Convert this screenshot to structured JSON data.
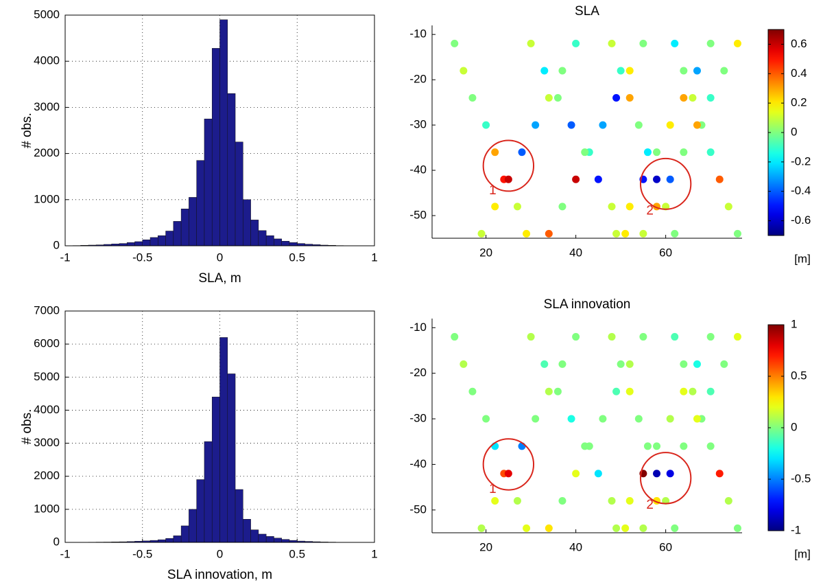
{
  "chart_data": [
    {
      "type": "histogram",
      "xlabel": "SLA, m",
      "ylabel": "# obs.",
      "color": "#1c1c8c",
      "grid": true,
      "bins": [
        -1,
        -0.95,
        -0.9,
        -0.85,
        -0.8,
        -0.75,
        -0.7,
        -0.65,
        -0.6,
        -0.55,
        -0.5,
        -0.45,
        -0.4,
        -0.35,
        -0.3,
        -0.25,
        -0.2,
        -0.15,
        -0.1,
        -0.05,
        0,
        0.05,
        0.1,
        0.15,
        0.2,
        0.25,
        0.3,
        0.35,
        0.4,
        0.45,
        0.5,
        0.55,
        0.6,
        0.65,
        0.7,
        0.75,
        0.8,
        0.85,
        0.9,
        0.95,
        1
      ],
      "values": [
        0,
        5,
        10,
        15,
        20,
        30,
        40,
        50,
        70,
        90,
        130,
        180,
        220,
        320,
        530,
        800,
        1050,
        1850,
        2750,
        4280,
        4900,
        3300,
        2250,
        1000,
        560,
        330,
        220,
        150,
        100,
        70,
        50,
        35,
        25,
        15,
        10,
        5,
        3,
        2,
        1,
        0
      ],
      "xlim": [
        -1,
        1
      ],
      "xticks": [
        -1,
        -0.5,
        0,
        0.5,
        1
      ],
      "ylim": [
        0,
        5000
      ],
      "yticks": [
        0,
        1000,
        2000,
        3000,
        4000,
        5000
      ]
    },
    {
      "type": "scatter",
      "title": "SLA",
      "colorbar_label": "[m]",
      "colormap": "jet",
      "x": [
        13,
        15,
        17,
        20,
        22,
        24,
        27,
        29,
        40,
        37,
        34,
        31,
        28,
        25,
        22,
        19,
        48,
        50,
        52,
        54,
        56,
        58,
        60,
        62,
        70,
        67,
        64,
        61,
        58,
        55,
        52,
        49,
        55,
        52,
        49,
        46,
        43,
        40,
        37,
        34,
        62,
        64,
        66,
        68,
        70,
        72,
        74,
        76,
        30,
        33,
        36,
        39,
        42,
        45,
        48,
        51,
        76,
        73,
        70,
        67,
        64,
        61,
        58,
        55
      ],
      "y": [
        -12,
        -18,
        -24,
        -30,
        -36,
        -42,
        -48,
        -54,
        -12,
        -18,
        -24,
        -30,
        -36,
        -42,
        -48,
        -54,
        -12,
        -18,
        -24,
        -30,
        -36,
        -42,
        -48,
        -54,
        -12,
        -18,
        -24,
        -30,
        -36,
        -42,
        -48,
        -54,
        -12,
        -18,
        -24,
        -30,
        -36,
        -42,
        -48,
        -54,
        -12,
        -18,
        -24,
        -30,
        -36,
        -42,
        -48,
        -54,
        -12,
        -18,
        -24,
        -30,
        -36,
        -42,
        -48,
        -54,
        -12,
        -18,
        -24,
        -30,
        -36,
        -42,
        -48,
        -54
      ],
      "values": [
        0,
        0.1,
        0,
        -0.1,
        0.3,
        0.5,
        0.1,
        0.2,
        -0.1,
        0,
        0.1,
        -0.3,
        -0.4,
        0.6,
        0.2,
        0.1,
        0.1,
        -0.1,
        0.3,
        0,
        -0.2,
        -0.6,
        0.1,
        0,
        0,
        -0.3,
        0.3,
        0.2,
        0,
        -0.5,
        0.2,
        0.1,
        0,
        0.2,
        -0.5,
        -0.3,
        -0.1,
        0.6,
        0,
        0.4,
        -0.2,
        0,
        0.1,
        0,
        -0.1,
        0.4,
        0.1,
        0,
        0.1,
        -0.2,
        0,
        -0.4,
        0,
        -0.5,
        0.1,
        0.2,
        0.2,
        0,
        -0.1,
        0.3,
        0,
        -0.4,
        0.3,
        0.1
      ],
      "xlim": [
        8,
        77
      ],
      "xticks": [
        20,
        40,
        60
      ],
      "ylim": [
        -55,
        -8
      ],
      "yticks": [
        -50,
        -40,
        -30,
        -20,
        -10
      ],
      "clim": [
        -0.7,
        0.7
      ],
      "cticks": [
        -0.6,
        -0.4,
        -0.2,
        0,
        0.2,
        0.4,
        0.6
      ],
      "circles": [
        {
          "x": 25,
          "y": -39,
          "r": 5.6
        },
        {
          "x": 60,
          "y": -43,
          "r": 5.6
        }
      ],
      "annotations": [
        {
          "text": "1",
          "x": 21.5,
          "y": -44.5
        },
        {
          "text": "2",
          "x": 56.5,
          "y": -49
        }
      ]
    },
    {
      "type": "histogram",
      "xlabel": "SLA innovation, m",
      "ylabel": "# obs.",
      "color": "#1c1c8c",
      "grid": true,
      "bins": [
        -1,
        -0.95,
        -0.9,
        -0.85,
        -0.8,
        -0.75,
        -0.7,
        -0.65,
        -0.6,
        -0.55,
        -0.5,
        -0.45,
        -0.4,
        -0.35,
        -0.3,
        -0.25,
        -0.2,
        -0.15,
        -0.1,
        -0.05,
        0,
        0.05,
        0.1,
        0.15,
        0.2,
        0.25,
        0.3,
        0.35,
        0.4,
        0.45,
        0.5,
        0.55,
        0.6,
        0.65,
        0.7,
        0.75,
        0.8,
        0.85,
        0.9,
        0.95,
        1
      ],
      "values": [
        0,
        2,
        4,
        6,
        8,
        10,
        14,
        18,
        25,
        35,
        45,
        60,
        80,
        120,
        200,
        500,
        1000,
        1900,
        3050,
        4400,
        6200,
        5100,
        1600,
        700,
        380,
        250,
        180,
        130,
        90,
        60,
        40,
        30,
        20,
        12,
        8,
        5,
        3,
        2,
        1,
        0
      ],
      "xlim": [
        -1,
        1
      ],
      "xticks": [
        -1,
        -0.5,
        0,
        0.5,
        1
      ],
      "ylim": [
        0,
        7000
      ],
      "yticks": [
        0,
        1000,
        2000,
        3000,
        4000,
        5000,
        6000,
        7000
      ]
    },
    {
      "type": "scatter",
      "title": "SLA innovation",
      "colorbar_label": "[m]",
      "colormap": "jet",
      "x": [
        13,
        15,
        17,
        20,
        22,
        24,
        27,
        29,
        40,
        37,
        34,
        31,
        28,
        25,
        22,
        19,
        48,
        50,
        52,
        54,
        56,
        58,
        60,
        62,
        70,
        67,
        64,
        61,
        58,
        55,
        52,
        49,
        55,
        52,
        49,
        46,
        43,
        40,
        37,
        34,
        62,
        64,
        66,
        68,
        70,
        72,
        74,
        76,
        30,
        33,
        36,
        39,
        42,
        45,
        48,
        51,
        76,
        73,
        70,
        67,
        64,
        61,
        58,
        55
      ],
      "y": [
        -12,
        -18,
        -24,
        -30,
        -36,
        -42,
        -48,
        -54,
        -12,
        -18,
        -24,
        -30,
        -36,
        -42,
        -48,
        -54,
        -12,
        -18,
        -24,
        -30,
        -36,
        -42,
        -48,
        -54,
        -12,
        -18,
        -24,
        -30,
        -36,
        -42,
        -48,
        -54,
        -12,
        -18,
        -24,
        -30,
        -36,
        -42,
        -48,
        -54,
        -12,
        -18,
        -24,
        -30,
        -36,
        -42,
        -48,
        -54,
        -12,
        -18,
        -24,
        -30,
        -36,
        -42,
        -48,
        -54,
        -12,
        -18,
        -24,
        -30,
        -36,
        -42,
        -48,
        -54
      ],
      "values": [
        0,
        0.1,
        0,
        0,
        -0.3,
        0.6,
        0.1,
        0.2,
        0,
        0,
        0.1,
        0,
        -0.5,
        0.8,
        0.2,
        0.1,
        0.1,
        0,
        0.2,
        0,
        0,
        -0.9,
        0.1,
        0,
        0,
        -0.2,
        0.2,
        0.1,
        0,
        1,
        0.2,
        0.1,
        0,
        0.1,
        -0.1,
        0,
        0,
        0.2,
        0,
        0.3,
        -0.1,
        0,
        0.1,
        0,
        0,
        0.7,
        0.1,
        0,
        0.1,
        -0.1,
        0,
        -0.2,
        0,
        -0.3,
        0.1,
        0.2,
        0.2,
        0,
        -0.1,
        0.2,
        0,
        -0.8,
        0.3,
        0.1
      ],
      "xlim": [
        8,
        77
      ],
      "xticks": [
        20,
        40,
        60
      ],
      "ylim": [
        -55,
        -8
      ],
      "yticks": [
        -50,
        -40,
        -30,
        -20,
        -10
      ],
      "clim": [
        -1,
        1
      ],
      "cticks": [
        -1,
        -0.5,
        0,
        0.5,
        1
      ],
      "circles": [
        {
          "x": 25,
          "y": -40,
          "r": 5.6
        },
        {
          "x": 60,
          "y": -43,
          "r": 5.6
        }
      ],
      "annotations": [
        {
          "text": "1",
          "x": 21.5,
          "y": -45.5
        },
        {
          "text": "2",
          "x": 56.5,
          "y": -49
        }
      ]
    }
  ]
}
